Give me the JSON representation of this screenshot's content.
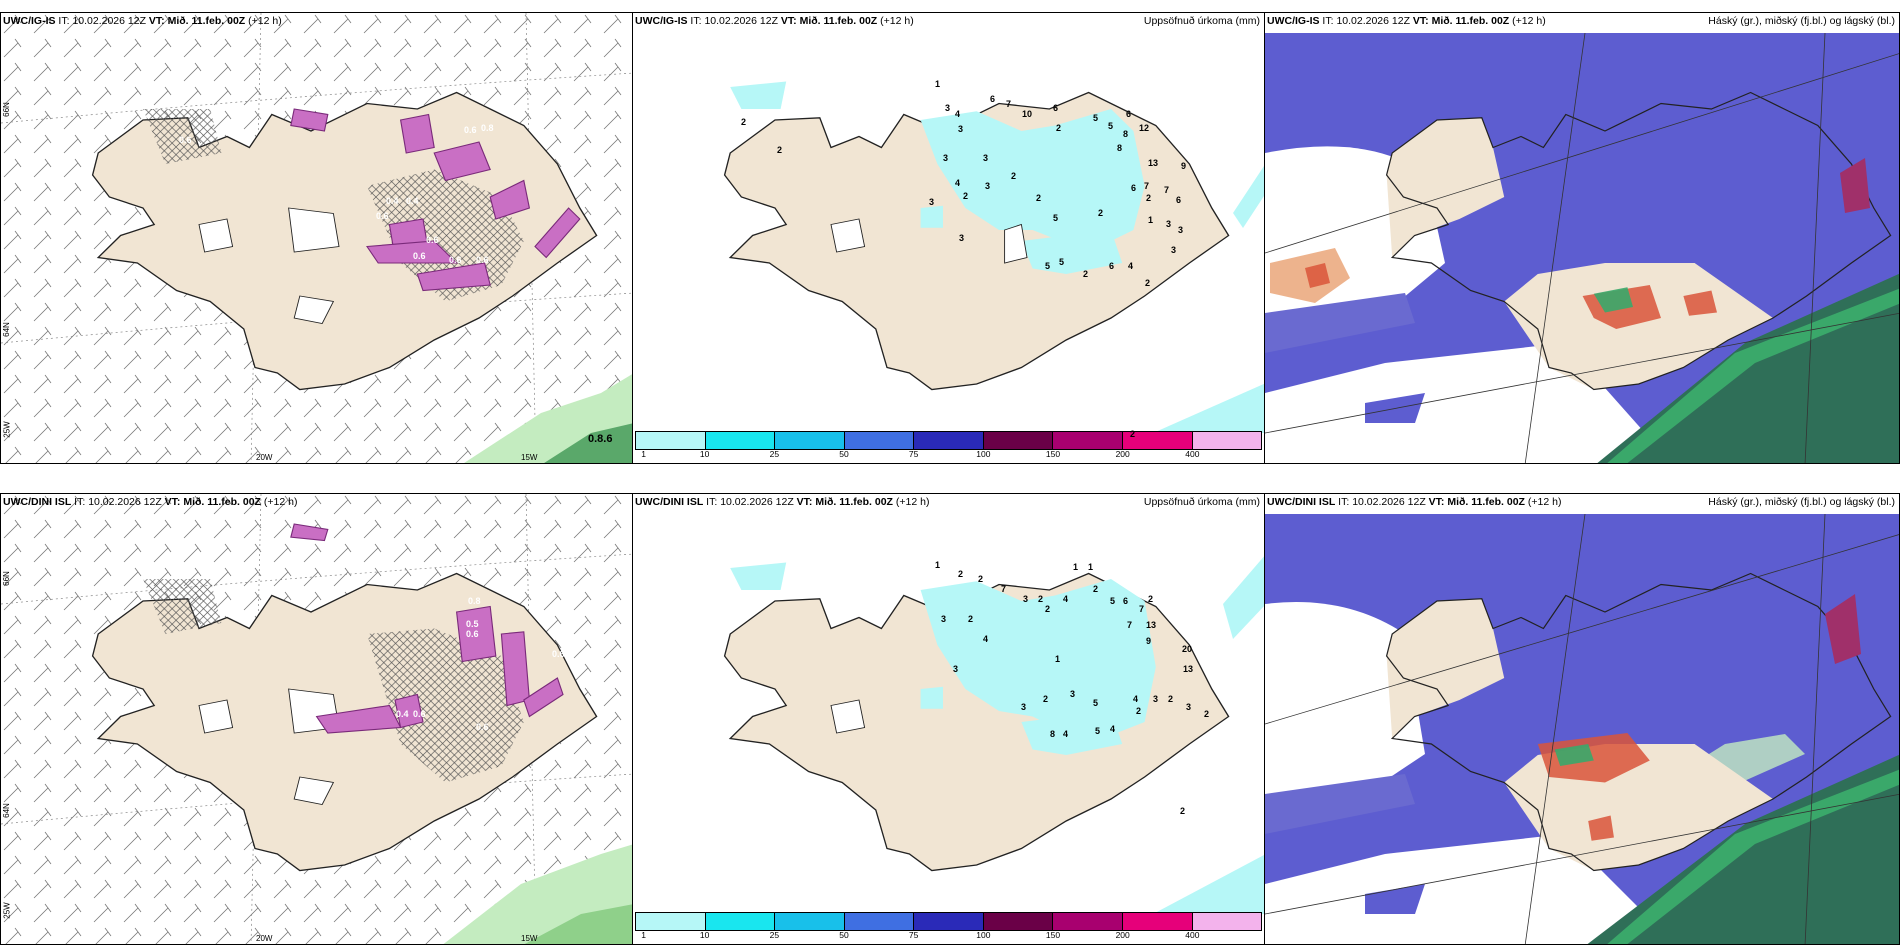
{
  "panels": [
    {
      "model": "UWC/IG-IS",
      "it_label": "IT:",
      "it": "10.02.2026 12Z",
      "vt_label": "VT:",
      "vt": "Mið. 11.feb. 00Z",
      "lead": "(+12 h)",
      "right_title": ""
    },
    {
      "model": "UWC/IG-IS",
      "it_label": "IT:",
      "it": "10.02.2026 12Z",
      "vt_label": "VT:",
      "vt": "Mið. 11.feb. 00Z",
      "lead": "(+12 h)",
      "right_title": "Uppsöfnuð úrkoma (mm)"
    },
    {
      "model": "UWC/IG-IS",
      "it_label": "IT:",
      "it": "10.02.2026 12Z",
      "vt_label": "VT:",
      "vt": "Mið. 11.feb. 00Z",
      "lead": "(+12 h)",
      "right_title": "Háský (gr.), miðský (fj.bl.) og lágský (bl.)"
    },
    {
      "model": "UWC/DINI ISL",
      "it_label": "IT:",
      "it": "10.02.2026 12Z",
      "vt_label": "VT:",
      "vt": "Mið. 11.feb. 00Z",
      "lead": "(+12 h)",
      "right_title": ""
    },
    {
      "model": "UWC/DINI ISL",
      "it_label": "IT:",
      "it": "10.02.2026 12Z",
      "vt_label": "VT:",
      "vt": "Mið. 11.feb. 00Z",
      "lead": "(+12 h)",
      "right_title": "Uppsöfnuð úrkoma (mm)"
    },
    {
      "model": "UWC/DINI ISL",
      "it_label": "IT:",
      "it": "10.02.2026 12Z",
      "vt_label": "VT:",
      "vt": "Mið. 11.feb. 00Z",
      "lead": "(+12 h)",
      "right_title": "Háský (gr.), miðský (fj.bl.) og lágský (bl.)"
    }
  ],
  "axes": {
    "lon_labels": [
      "20W",
      "15W"
    ],
    "lat_labels": [
      "66N",
      "64N",
      "25W"
    ]
  },
  "wind_panel_values": {
    "top_corner": "0.8.6",
    "top_icing_labels": [
      "0.6",
      "0.6",
      "0.4",
      "0.4",
      "0.6",
      "0.6",
      "0.6",
      "0.6",
      "0.8",
      "0.6"
    ],
    "bottom_icing_labels": [
      "0.8",
      "0.5",
      "0.6",
      "0.6",
      "0.4",
      "0.6",
      "0.6"
    ]
  },
  "precip_legend": {
    "labels": [
      "1",
      "10",
      "25",
      "50",
      "75",
      "100",
      "150",
      "200",
      "400"
    ],
    "colors": [
      "#b6f7f7",
      "#19e6ef",
      "#18c0ea",
      "#3f6fe2",
      "#2a2ab8",
      "#6a0047",
      "#a8006f",
      "#e6007a",
      "#f3b3ec"
    ]
  },
  "precip_top_values": [
    "1",
    "6",
    "7",
    "10",
    "6",
    "3",
    "4",
    "2",
    "12",
    "3",
    "6",
    "5",
    "5",
    "8",
    "8",
    "3",
    "13",
    "3",
    "9",
    "4",
    "2",
    "2",
    "7",
    "2",
    "3",
    "3",
    "5",
    "2",
    "5",
    "3",
    "1",
    "3",
    "3",
    "6",
    "3",
    "6",
    "4",
    "2",
    "2",
    "2",
    "6",
    "7",
    "5",
    "2",
    "2",
    "2"
  ],
  "precip_bottom_values": [
    "1",
    "2",
    "2",
    "7",
    "3",
    "2",
    "4",
    "1",
    "1",
    "2",
    "3",
    "2",
    "2",
    "4",
    "5",
    "6",
    "7",
    "2",
    "7",
    "13",
    "9",
    "20",
    "13",
    "1",
    "3",
    "3",
    "2",
    "5",
    "4",
    "3",
    "2",
    "2",
    "3",
    "3",
    "8",
    "4",
    "5",
    "4",
    "2",
    "2"
  ],
  "colors": {
    "land": "#f1e5d3",
    "coast": "#222222",
    "icing": "#c96fc4",
    "icing_dark": "#7a2a7a",
    "precip_light": "#b6f7f7",
    "high_cloud": "#6a6ad0",
    "mid_cloud": "#3a4fe0",
    "low_cloud_green": "#3aa86a",
    "low_cloud_dark": "#2f6f58",
    "red_cloud": "#d9553a",
    "light_green": "#c4ecc0"
  }
}
